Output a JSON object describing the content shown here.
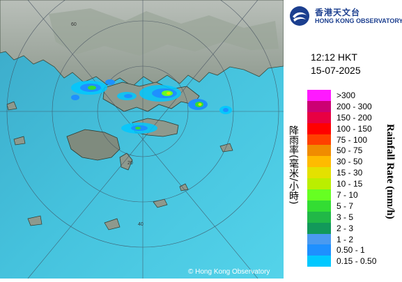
{
  "header": {
    "org_name_cn": "香港天文台",
    "org_name_en": "HONG KONG OBSERVATORY"
  },
  "timestamp": {
    "time": "12:12 HKT",
    "date": "15-07-2025"
  },
  "legend": {
    "title_cn": "降雨率(毫米/小時)",
    "title_en": "Rainfall Rate (mm/h)",
    "items": [
      {
        "label": ">300",
        "color": "#ff19ff"
      },
      {
        "label": "200 - 300",
        "color": "#cc0073"
      },
      {
        "label": "150 - 200",
        "color": "#e80042"
      },
      {
        "label": "100 - 150",
        "color": "#ff0000"
      },
      {
        "label": "75 - 100",
        "color": "#ff4000"
      },
      {
        "label": "50 - 75",
        "color": "#f08c00"
      },
      {
        "label": "30 - 50",
        "color": "#ffbb00"
      },
      {
        "label": "15 - 30",
        "color": "#e4e100"
      },
      {
        "label": "10 - 15",
        "color": "#bbee00"
      },
      {
        "label": "7 - 10",
        "color": "#66ff22"
      },
      {
        "label": "5 - 7",
        "color": "#33dd33"
      },
      {
        "label": "3 - 5",
        "color": "#21b847"
      },
      {
        "label": "2 - 3",
        "color": "#12995a"
      },
      {
        "label": "1 - 2",
        "color": "#4a9af0"
      },
      {
        "label": "0.50 - 1",
        "color": "#1e90ff"
      },
      {
        "label": "0.15 - 0.50",
        "color": "#00c8ff"
      }
    ]
  },
  "map": {
    "copyright": "© Hong Kong Observatory",
    "range_rings": [
      {
        "label": "60"
      },
      {
        "label": "40"
      },
      {
        "label": "20"
      }
    ]
  }
}
